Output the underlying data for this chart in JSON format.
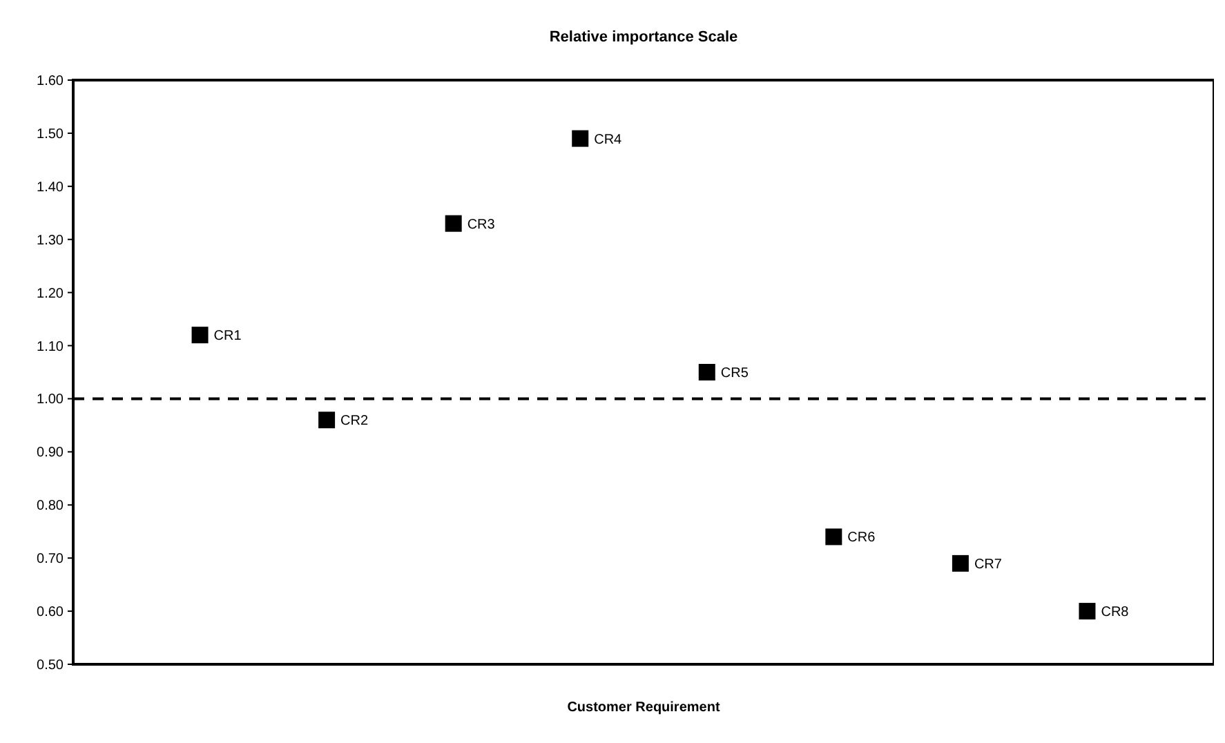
{
  "chart_data": {
    "type": "scatter",
    "title": "Relative importance Scale",
    "xlabel": "Customer Requirement",
    "categories": [
      null,
      null,
      null,
      null,
      null,
      null,
      null,
      null
    ],
    "series": [
      {
        "color": "#000000",
        "values": [
          1.12,
          0.96,
          1.33,
          1.49,
          1.05,
          0.74,
          0.69,
          0.6
        ]
      }
    ],
    "annotations": [
      "CR1",
      "CR2",
      "CR3",
      "CR4",
      "CR5",
      "CR6",
      "CR7",
      "CR8"
    ],
    "ylim": [
      0.5,
      1.6
    ],
    "yticks": [
      {
        "value": 0.5,
        "label": "0.50"
      },
      {
        "value": 0.6,
        "label": "0.60"
      },
      {
        "value": 0.7,
        "label": "0.70"
      },
      {
        "value": 0.8,
        "label": "0.80"
      },
      {
        "value": 0.9,
        "label": "0.90"
      },
      {
        "value": 1.0,
        "label": "1.00"
      },
      {
        "value": 1.1,
        "label": "1.10"
      },
      {
        "value": 1.2,
        "label": "1.20"
      },
      {
        "value": 1.3,
        "label": "1.30"
      },
      {
        "value": 1.4,
        "label": "1.40"
      },
      {
        "value": 1.5,
        "label": "1.50"
      },
      {
        "value": 1.6,
        "label": "1.60"
      }
    ],
    "ref_lines": [
      {
        "axis": "y",
        "value": 1.0,
        "line_style": "dashed",
        "color": "#000000"
      }
    ],
    "marker": "square",
    "tick_labels": "y",
    "grid": false
  }
}
